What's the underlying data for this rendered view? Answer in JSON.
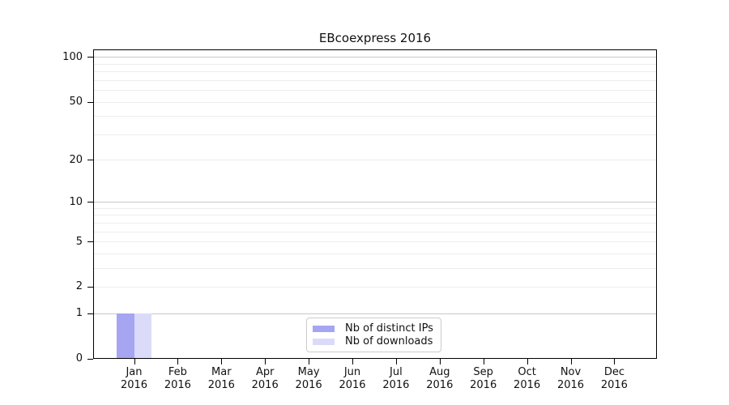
{
  "chart_data": {
    "type": "bar",
    "title": "EBcoexpress 2016",
    "x_months": [
      "Jan",
      "Feb",
      "Mar",
      "Apr",
      "May",
      "Jun",
      "Jul",
      "Aug",
      "Sep",
      "Oct",
      "Nov",
      "Dec"
    ],
    "x_year": "2016",
    "series": [
      {
        "name": "Nb of distinct IPs",
        "color": "#a5a5f2",
        "values": [
          1,
          0,
          0,
          0,
          0,
          0,
          0,
          0,
          0,
          0,
          0,
          0
        ]
      },
      {
        "name": "Nb of downloads",
        "color": "#dbdbf9",
        "values": [
          1,
          0,
          0,
          0,
          0,
          0,
          0,
          0,
          0,
          0,
          0,
          0
        ]
      }
    ],
    "y_axis": {
      "scale": "log1p",
      "ylim": [
        0,
        113
      ],
      "labeled_ticks": [
        0,
        1,
        2,
        5,
        10,
        20,
        50,
        100
      ],
      "decade_gridlines": [
        1,
        10,
        100
      ],
      "minor_gridlines": [
        2,
        3,
        4,
        5,
        6,
        7,
        8,
        9,
        20,
        30,
        40,
        50,
        60,
        70,
        80,
        90
      ]
    },
    "legend": {
      "location": "lower-center",
      "entries": [
        "Nb of distinct IPs",
        "Nb of downloads"
      ]
    },
    "grid": true
  }
}
